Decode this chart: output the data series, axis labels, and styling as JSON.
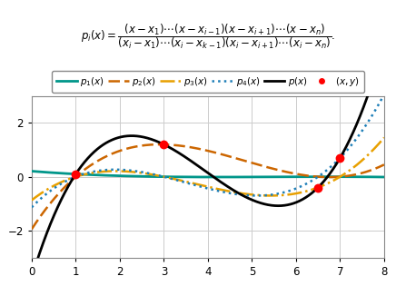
{
  "data_points_x": [
    1.0,
    3.0,
    6.5,
    7.0
  ],
  "data_points_y": [
    0.1,
    1.2,
    -0.4,
    0.7
  ],
  "xlim": [
    0,
    8
  ],
  "ylim": [
    -3.0,
    3.0
  ],
  "xticks": [
    0,
    1,
    2,
    3,
    4,
    5,
    6,
    7,
    8
  ],
  "yticks": [
    -2,
    0,
    2
  ],
  "color_p1": "#00968A",
  "color_p2": "#CC6600",
  "color_p3": "#E8A000",
  "color_p4": "#1E7FB8",
  "color_px": "#000000",
  "color_dots": "#FF0000",
  "legend_labels": [
    "$p_1(x)$",
    "$p_2(x)$",
    "$p_3(x)$",
    "$p_4(x)$",
    "$p(x)$",
    "$(x,y)$"
  ],
  "grid_color": "#CCCCCC",
  "background_color": "#FFFFFF",
  "fig_width": 4.36,
  "fig_height": 3.15
}
